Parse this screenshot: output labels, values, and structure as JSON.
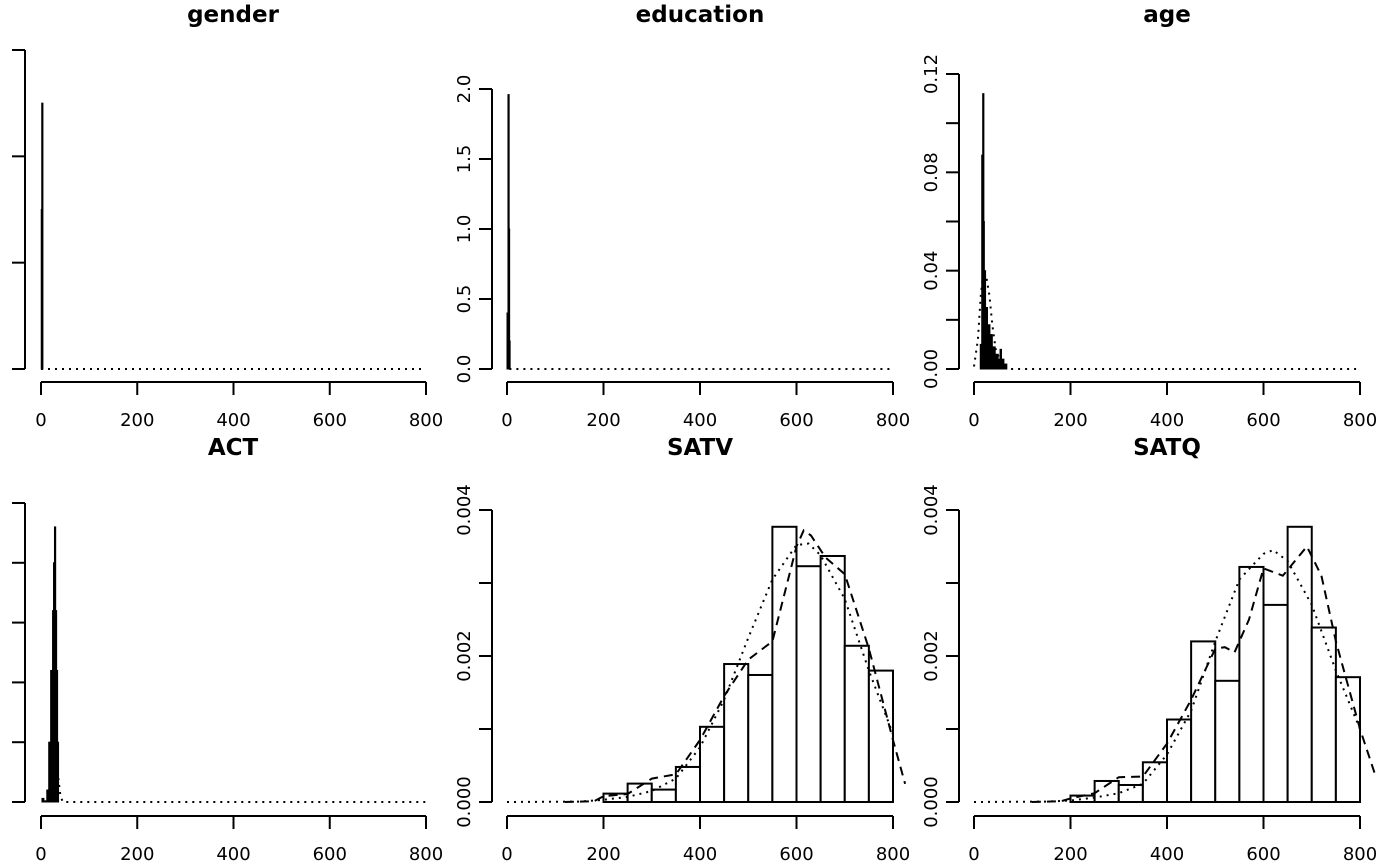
{
  "chart_data": [
    {
      "type": "bar",
      "title": "gender",
      "xlabel": "",
      "ylabel": "",
      "xlim": [
        0,
        800
      ],
      "x_ticks": [
        "0",
        "200",
        "400",
        "600",
        "800"
      ],
      "y_ticks": [],
      "y_tick_count": 4,
      "ylim": [
        0,
        2.4
      ],
      "bars": [
        {
          "x0": 0.5,
          "x1": 1.5,
          "y": 1.2
        },
        {
          "x0": 1.5,
          "x1": 2.5,
          "y": 2.0
        }
      ],
      "density_dotted": [
        [
          0,
          0
        ],
        [
          800,
          0
        ]
      ],
      "density_dashed": []
    },
    {
      "type": "bar",
      "title": "education",
      "xlabel": "",
      "ylabel": "",
      "xlim": [
        0,
        800
      ],
      "x_ticks": [
        "0",
        "200",
        "400",
        "600",
        "800"
      ],
      "y_ticks": [
        "0.0",
        "0.5",
        "1.0",
        "1.5",
        "2.0"
      ],
      "ylim": [
        0,
        2.0
      ],
      "bars": [
        {
          "x0": 0,
          "x1": 1,
          "y": 0.4
        },
        {
          "x0": 1,
          "x1": 2,
          "y": 0.3
        },
        {
          "x0": 2,
          "x1": 3,
          "y": 1.96
        },
        {
          "x0": 3,
          "x1": 4,
          "y": 1.0
        },
        {
          "x0": 4,
          "x1": 5,
          "y": 0.2
        }
      ],
      "density_dotted": [
        [
          5,
          0
        ],
        [
          800,
          0
        ]
      ],
      "density_dashed": []
    },
    {
      "type": "bar",
      "title": "age",
      "xlabel": "",
      "ylabel": "",
      "xlim": [
        0,
        800
      ],
      "x_ticks": [
        "0",
        "200",
        "400",
        "600",
        "800"
      ],
      "y_ticks": [
        "0.00",
        "0.04",
        "0.08",
        "0.12"
      ],
      "y_minor_ticks": [
        0.02,
        0.06,
        0.1
      ],
      "ylim": [
        0,
        0.12
      ],
      "bars": [
        {
          "x0": 13,
          "x1": 16,
          "y": 0.01
        },
        {
          "x0": 16,
          "x1": 18,
          "y": 0.087
        },
        {
          "x0": 18,
          "x1": 19,
          "y": 0.112
        },
        {
          "x0": 19,
          "x1": 21,
          "y": 0.06
        },
        {
          "x0": 21,
          "x1": 24,
          "y": 0.04
        },
        {
          "x0": 24,
          "x1": 28,
          "y": 0.025
        },
        {
          "x0": 28,
          "x1": 33,
          "y": 0.018
        },
        {
          "x0": 33,
          "x1": 38,
          "y": 0.014
        },
        {
          "x0": 38,
          "x1": 44,
          "y": 0.009
        },
        {
          "x0": 44,
          "x1": 50,
          "y": 0.006
        },
        {
          "x0": 50,
          "x1": 54,
          "y": 0.004
        },
        {
          "x0": 54,
          "x1": 57,
          "y": 0.008
        },
        {
          "x0": 57,
          "x1": 62,
          "y": 0.004
        },
        {
          "x0": 62,
          "x1": 68,
          "y": 0.002
        }
      ],
      "density_dotted": [
        [
          0,
          0.001
        ],
        [
          8,
          0.012
        ],
        [
          14,
          0.03
        ],
        [
          20,
          0.04
        ],
        [
          26,
          0.037
        ],
        [
          32,
          0.03
        ],
        [
          38,
          0.018
        ],
        [
          45,
          0.008
        ],
        [
          55,
          0.003
        ],
        [
          70,
          0
        ],
        [
          800,
          0
        ]
      ],
      "density_dashed": []
    },
    {
      "type": "bar",
      "title": "ACT",
      "xlabel": "",
      "ylabel": "",
      "xlim": [
        0,
        800
      ],
      "x_ticks": [
        "0",
        "200",
        "400",
        "600",
        "800"
      ],
      "y_ticks": [],
      "y_tick_count": 6,
      "ylim": [
        0,
        0.25
      ],
      "bars": [
        {
          "x0": 2,
          "x1": 6,
          "y": 0.003
        },
        {
          "x0": 6,
          "x1": 12,
          "y": 0.001
        },
        {
          "x0": 12,
          "x1": 16,
          "y": 0.01
        },
        {
          "x0": 16,
          "x1": 20,
          "y": 0.05
        },
        {
          "x0": 20,
          "x1": 24,
          "y": 0.11
        },
        {
          "x0": 24,
          "x1": 26,
          "y": 0.16
        },
        {
          "x0": 26,
          "x1": 28,
          "y": 0.2
        },
        {
          "x0": 28,
          "x1": 30,
          "y": 0.23
        },
        {
          "x0": 30,
          "x1": 32,
          "y": 0.16
        },
        {
          "x0": 32,
          "x1": 34,
          "y": 0.11
        },
        {
          "x0": 34,
          "x1": 36,
          "y": 0.05
        }
      ],
      "density_dotted": [
        [
          36,
          0.02
        ],
        [
          40,
          0.006
        ],
        [
          45,
          0
        ],
        [
          800,
          0
        ]
      ],
      "density_dashed": []
    },
    {
      "type": "bar",
      "title": "SATV",
      "xlabel": "",
      "ylabel": "",
      "xlim": [
        0,
        800
      ],
      "x_ticks": [
        "0",
        "200",
        "400",
        "600",
        "800"
      ],
      "y_ticks": [
        "0.000",
        "0.002",
        "0.004"
      ],
      "y_minor_ticks": [
        0.001,
        0.003
      ],
      "ylim": [
        0,
        0.004
      ],
      "bars": [
        {
          "x0": 200,
          "x1": 250,
          "y": 0.000115
        },
        {
          "x0": 250,
          "x1": 300,
          "y": 0.000252
        },
        {
          "x0": 300,
          "x1": 350,
          "y": 0.00017
        },
        {
          "x0": 350,
          "x1": 400,
          "y": 0.00048
        },
        {
          "x0": 400,
          "x1": 450,
          "y": 0.00103
        },
        {
          "x0": 450,
          "x1": 500,
          "y": 0.00189
        },
        {
          "x0": 500,
          "x1": 550,
          "y": 0.00174
        },
        {
          "x0": 550,
          "x1": 600,
          "y": 0.00377
        },
        {
          "x0": 600,
          "x1": 650,
          "y": 0.00323
        },
        {
          "x0": 650,
          "x1": 700,
          "y": 0.00337
        },
        {
          "x0": 700,
          "x1": 750,
          "y": 0.00214
        },
        {
          "x0": 750,
          "x1": 800,
          "y": 0.0018
        }
      ],
      "density_dotted": [
        [
          0,
          0
        ],
        [
          150,
          5e-06
        ],
        [
          200,
          3e-05
        ],
        [
          250,
          7e-05
        ],
        [
          300,
          0.00015
        ],
        [
          350,
          0.00032
        ],
        [
          400,
          0.00075
        ],
        [
          450,
          0.0014
        ],
        [
          500,
          0.00225
        ],
        [
          550,
          0.00305
        ],
        [
          600,
          0.00352
        ],
        [
          625,
          0.00354
        ],
        [
          650,
          0.00338
        ],
        [
          700,
          0.00278
        ],
        [
          750,
          0.0018
        ],
        [
          800,
          0.00093
        ]
      ],
      "density_dashed": [
        [
          120,
          0
        ],
        [
          180,
          1e-05
        ],
        [
          200,
          8e-05
        ],
        [
          250,
          0.00011
        ],
        [
          300,
          0.00032
        ],
        [
          350,
          0.00038
        ],
        [
          400,
          0.00085
        ],
        [
          450,
          0.00145
        ],
        [
          500,
          0.00195
        ],
        [
          550,
          0.0022
        ],
        [
          600,
          0.0035
        ],
        [
          615,
          0.00372
        ],
        [
          630,
          0.00365
        ],
        [
          660,
          0.00335
        ],
        [
          700,
          0.00312
        ],
        [
          750,
          0.0021
        ],
        [
          800,
          0.00085
        ],
        [
          825,
          0.00025
        ]
      ]
    },
    {
      "type": "bar",
      "title": "SATQ",
      "xlabel": "",
      "ylabel": "",
      "xlim": [
        0,
        800
      ],
      "x_ticks": [
        "0",
        "200",
        "400",
        "600",
        "800"
      ],
      "y_ticks": [
        "0.000",
        "0.002",
        "0.004"
      ],
      "y_minor_ticks": [
        0.001,
        0.003
      ],
      "ylim": [
        0,
        0.004
      ],
      "bars": [
        {
          "x0": 200,
          "x1": 250,
          "y": 8.8e-05
        },
        {
          "x0": 250,
          "x1": 300,
          "y": 0.000288
        },
        {
          "x0": 300,
          "x1": 350,
          "y": 0.000233
        },
        {
          "x0": 350,
          "x1": 400,
          "y": 0.000544
        },
        {
          "x0": 400,
          "x1": 450,
          "y": 0.00113
        },
        {
          "x0": 450,
          "x1": 500,
          "y": 0.0022
        },
        {
          "x0": 500,
          "x1": 550,
          "y": 0.00166
        },
        {
          "x0": 550,
          "x1": 600,
          "y": 0.00322
        },
        {
          "x0": 600,
          "x1": 650,
          "y": 0.0027
        },
        {
          "x0": 650,
          "x1": 700,
          "y": 0.00377
        },
        {
          "x0": 700,
          "x1": 750,
          "y": 0.00239
        },
        {
          "x0": 750,
          "x1": 800,
          "y": 0.00171
        }
      ],
      "density_dotted": [
        [
          0,
          0
        ],
        [
          150,
          5e-06
        ],
        [
          200,
          2e-05
        ],
        [
          250,
          6e-05
        ],
        [
          300,
          0.00012
        ],
        [
          350,
          0.00025
        ],
        [
          400,
          0.00065
        ],
        [
          450,
          0.00125
        ],
        [
          500,
          0.0022
        ],
        [
          550,
          0.00305
        ],
        [
          600,
          0.0034
        ],
        [
          620,
          0.00345
        ],
        [
          650,
          0.0033
        ],
        [
          700,
          0.0027
        ],
        [
          750,
          0.0018
        ],
        [
          800,
          0.001
        ]
      ],
      "density_dashed": [
        [
          120,
          0
        ],
        [
          180,
          1e-05
        ],
        [
          200,
          5e-05
        ],
        [
          250,
          0.00012
        ],
        [
          300,
          0.00034
        ],
        [
          350,
          0.00035
        ],
        [
          400,
          0.0008
        ],
        [
          450,
          0.0014
        ],
        [
          500,
          0.0021
        ],
        [
          520,
          0.00212
        ],
        [
          540,
          0.00205
        ],
        [
          570,
          0.0025
        ],
        [
          600,
          0.0032
        ],
        [
          640,
          0.0031
        ],
        [
          690,
          0.0035
        ],
        [
          720,
          0.0031
        ],
        [
          750,
          0.0022
        ],
        [
          800,
          0.001
        ],
        [
          830,
          0.0004
        ]
      ]
    }
  ]
}
